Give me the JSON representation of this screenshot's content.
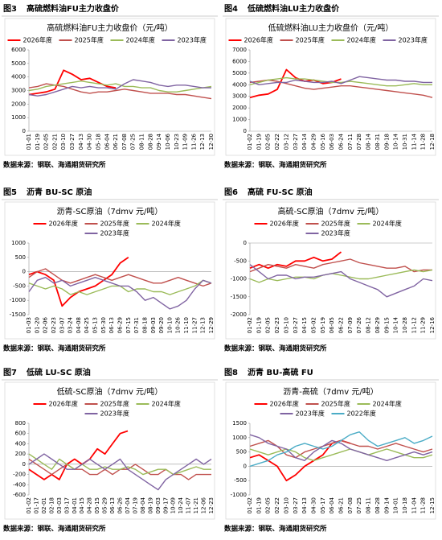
{
  "chart_data": [
    {
      "type": "line",
      "figure_label": "图3",
      "heading": "高硫燃料油FU主力收盘价",
      "title": "高硫燃料油FU主力收盘价（元/吨）",
      "source": "数据来源：钢联、海通期货研究所",
      "categories": [
        "01-01",
        "01-19",
        "02-05",
        "02-21",
        "03-10",
        "03-27",
        "04-13",
        "04-30",
        "05-18",
        "06-04",
        "06-21",
        "07-08",
        "07-25",
        "08-11",
        "08-28",
        "09-14",
        "10-06",
        "10-23",
        "11-09",
        "11-26",
        "12-13",
        "12-30"
      ],
      "ylim": [
        0,
        6000
      ],
      "yticks": [
        0,
        1000,
        2000,
        3000,
        4000,
        5000,
        6000
      ],
      "series": [
        {
          "name": "2026年度",
          "color": "#ff0000",
          "values": [
            2700,
            2800,
            2900,
            3100,
            4500,
            4200,
            3800,
            3900,
            3600,
            3300,
            3200,
            null,
            null,
            null,
            null,
            null,
            null,
            null,
            null,
            null,
            null,
            null
          ]
        },
        {
          "name": "2025年度",
          "color": "#c0504d",
          "values": [
            3200,
            3300,
            3500,
            3400,
            3300,
            3100,
            2900,
            2800,
            2900,
            2900,
            3000,
            3100,
            3000,
            2900,
            2800,
            2800,
            2800,
            2700,
            2700,
            2600,
            2500,
            2400
          ]
        },
        {
          "name": "2024年度",
          "color": "#9bbb59",
          "values": [
            3000,
            3100,
            3300,
            3400,
            3500,
            3600,
            3700,
            3600,
            3500,
            3400,
            3500,
            3300,
            3300,
            3200,
            3200,
            3000,
            2900,
            2900,
            3000,
            3100,
            3200,
            3300
          ]
        },
        {
          "name": "2023年度",
          "color": "#8064a2",
          "values": [
            2700,
            2600,
            2700,
            2900,
            3100,
            3300,
            3200,
            3300,
            3200,
            3200,
            3100,
            3500,
            3800,
            3700,
            3600,
            3400,
            3300,
            3400,
            3400,
            3300,
            3200,
            3200
          ]
        }
      ]
    },
    {
      "type": "line",
      "figure_label": "图4",
      "heading": "低硫燃料油LU主力收盘价",
      "title": "低硫燃料油LU主力收盘价（元/吨）",
      "source": "数据来源：钢联、海通期货研究所",
      "categories": [
        "01-02",
        "01-19",
        "02-05",
        "02-22",
        "03-12",
        "03-27",
        "04-14",
        "04-29",
        "05-16",
        "06-03",
        "06-24",
        "07-11",
        "07-28",
        "08-14",
        "08-31",
        "09-18",
        "10-14",
        "10-31",
        "11-14",
        "11-28",
        "12-18"
      ],
      "ylim": [
        0,
        7000
      ],
      "yticks": [
        0,
        1000,
        2000,
        3000,
        4000,
        5000,
        6000,
        7000
      ],
      "series": [
        {
          "name": "2026年度",
          "color": "#ff0000",
          "values": [
            2900,
            3100,
            3200,
            3600,
            5300,
            4600,
            4300,
            4400,
            4100,
            4200,
            4500,
            null,
            null,
            null,
            null,
            null,
            null,
            null,
            null,
            null,
            null
          ]
        },
        {
          "name": "2025年度",
          "color": "#c0504d",
          "values": [
            4200,
            4300,
            4400,
            4300,
            4100,
            3900,
            3700,
            3600,
            3700,
            3800,
            3900,
            3900,
            3800,
            3700,
            3600,
            3500,
            3400,
            3300,
            3200,
            3100,
            2900
          ]
        },
        {
          "name": "2024年度",
          "color": "#9bbb59",
          "values": [
            4000,
            4200,
            4400,
            4500,
            4600,
            4500,
            4500,
            4400,
            4300,
            4200,
            4200,
            4300,
            4200,
            4100,
            4000,
            3900,
            3900,
            4000,
            4100,
            4000,
            4000
          ]
        },
        {
          "name": "2023年度",
          "color": "#8064a2",
          "values": [
            4300,
            4000,
            4100,
            4200,
            4200,
            4400,
            4300,
            4200,
            4200,
            4300,
            4100,
            4400,
            4700,
            4600,
            4500,
            4400,
            4400,
            4300,
            4300,
            4200,
            4200
          ]
        }
      ]
    },
    {
      "type": "line",
      "figure_label": "图5",
      "heading": "沥青 BU-SC 原油",
      "title": "沥青-SC原油（7dmv 元/吨）",
      "source": "数据来源：钢联、海通期货研究所",
      "categories": [
        "01-03",
        "01-20",
        "02-06",
        "02-23",
        "03-07",
        "03-24",
        "04-08",
        "04-25",
        "05-13",
        "05-30",
        "06-13",
        "06-29",
        "07-15",
        "07-31",
        "08-18",
        "09-03",
        "09-20",
        "10-10",
        "10-26",
        "11-10",
        "11-27",
        "12-13",
        "12-29"
      ],
      "ylim": [
        -1500,
        1000
      ],
      "yticks": [
        -1500,
        -1000,
        -500,
        0,
        500,
        1000
      ],
      "series": [
        {
          "name": "2026年度",
          "color": "#ff0000",
          "values": [
            -100,
            0,
            -100,
            -300,
            -1200,
            -900,
            -700,
            -600,
            -500,
            -300,
            -100,
            300,
            500,
            null,
            null,
            null,
            null,
            null,
            null,
            null,
            null,
            null,
            null
          ]
        },
        {
          "name": "2025年度",
          "color": "#c0504d",
          "values": [
            -200,
            0,
            100,
            -100,
            -300,
            -400,
            -300,
            -200,
            -100,
            -200,
            -300,
            -200,
            -100,
            -200,
            -300,
            -400,
            -400,
            -300,
            -200,
            -300,
            -400,
            -500,
            -400
          ]
        },
        {
          "name": "2024年度",
          "color": "#9bbb59",
          "values": [
            -400,
            -500,
            -600,
            -500,
            -600,
            -800,
            -700,
            -800,
            -700,
            -600,
            -500,
            -500,
            -700,
            -600,
            -600,
            -700,
            -700,
            -800,
            -700,
            -600,
            -500,
            -300,
            -400
          ]
        },
        {
          "name": "2023年度",
          "color": "#8064a2",
          "values": [
            -700,
            -300,
            -200,
            -400,
            -300,
            -500,
            -400,
            -300,
            -200,
            -300,
            -400,
            -500,
            -500,
            -700,
            -1000,
            -900,
            -1100,
            -1300,
            -1200,
            -1000,
            -600,
            -300,
            -400
          ]
        }
      ]
    },
    {
      "type": "line",
      "figure_label": "图6",
      "heading": "高硫 FU-SC 原油",
      "title": "高硫-SC原油（7dmv 元/吨）",
      "source": "数据来源：钢联、海通期货研究所",
      "categories": [
        "01-02",
        "01-19",
        "02-05",
        "02-23",
        "03-10",
        "03-27",
        "04-15",
        "05-02",
        "05-19",
        "06-05",
        "06-22",
        "07-09",
        "07-26",
        "08-12",
        "08-29",
        "09-15",
        "10-14",
        "10-28",
        "11-12",
        "11-29",
        "12-16"
      ],
      "ylim": [
        -2000,
        0
      ],
      "yticks": [
        -2000,
        -1500,
        -1000,
        -500,
        0
      ],
      "series": [
        {
          "name": "2026年度",
          "color": "#ff0000",
          "values": [
            -700,
            -600,
            -700,
            -600,
            -650,
            -500,
            -500,
            -400,
            -500,
            -450,
            -250,
            null,
            null,
            null,
            null,
            null,
            null,
            null,
            null,
            null,
            null
          ]
        },
        {
          "name": "2025年度",
          "color": "#c0504d",
          "values": [
            -800,
            -700,
            -600,
            -650,
            -700,
            -600,
            -650,
            -700,
            -600,
            -550,
            -500,
            -450,
            -550,
            -600,
            -650,
            -700,
            -700,
            -650,
            -800,
            -750,
            -750
          ]
        },
        {
          "name": "2024年度",
          "color": "#9bbb59",
          "values": [
            -1000,
            -1100,
            -1000,
            -1050,
            -1000,
            -950,
            -950,
            -1000,
            -900,
            -850,
            -900,
            -950,
            -1000,
            -1000,
            -950,
            -900,
            -850,
            -800,
            -750,
            -800,
            -750
          ]
        },
        {
          "name": "2023年度",
          "color": "#8064a2",
          "values": [
            -600,
            -800,
            -1000,
            -900,
            -900,
            -1000,
            -950,
            -950,
            -900,
            -850,
            -800,
            -1000,
            -1100,
            -1200,
            -1300,
            -1500,
            -1400,
            -1300,
            -1200,
            -1000,
            -1050
          ]
        }
      ]
    },
    {
      "type": "line",
      "figure_label": "图7",
      "heading": "低硫 LU-SC 原油",
      "title": "低硫-SC原油（7dmv 元/吨）",
      "source": "数据来源：钢联、海通期货研究所",
      "categories": [
        "01-02",
        "01-17",
        "02-01",
        "02-18",
        "03-03",
        "03-17",
        "04-01",
        "04-15",
        "04-28",
        "05-15",
        "05-29",
        "06-13",
        "06-26",
        "07-04",
        "07-19",
        "08-04",
        "08-19",
        "09-03",
        "09-17",
        "10-09",
        "10-24",
        "11-07",
        "11-21",
        "12-06",
        "12-23"
      ],
      "ylim": [
        -600,
        800
      ],
      "yticks": [
        -600,
        -400,
        -200,
        0,
        200,
        400,
        600,
        800
      ],
      "series": [
        {
          "name": "2026年度",
          "color": "#ff0000",
          "values": [
            -100,
            -200,
            -300,
            -200,
            -300,
            0,
            100,
            0,
            100,
            300,
            200,
            400,
            600,
            650,
            null,
            null,
            null,
            null,
            null,
            null,
            null,
            null,
            null,
            null,
            null
          ]
        },
        {
          "name": "2025年度",
          "color": "#c0504d",
          "values": [
            100,
            0,
            -100,
            -200,
            -100,
            0,
            -100,
            -100,
            -200,
            -200,
            -100,
            -200,
            -100,
            -100,
            0,
            -100,
            -200,
            -200,
            -100,
            -200,
            -200,
            -300,
            -200,
            -200,
            -200
          ]
        },
        {
          "name": "2024年度",
          "color": "#9bbb59",
          "values": [
            200,
            100,
            0,
            -100,
            100,
            0,
            -100,
            0,
            -100,
            -100,
            -50,
            -100,
            -100,
            -50,
            -100,
            -200,
            -150,
            -100,
            -100,
            -200,
            -150,
            -100,
            -50,
            -100,
            -100
          ]
        },
        {
          "name": "2023年度",
          "color": "#8064a2",
          "values": [
            0,
            100,
            200,
            100,
            0,
            -100,
            -100,
            0,
            100,
            0,
            -100,
            0,
            100,
            -100,
            -200,
            -300,
            -400,
            -500,
            -300,
            -200,
            -100,
            0,
            100,
            0,
            100
          ]
        }
      ]
    },
    {
      "type": "line",
      "figure_label": "图8",
      "heading": "沥青 BU-高硫 FU",
      "title": "沥青-高硫（7dmv 元/吨）",
      "source": "数据来源：钢联、海通期货研究所",
      "categories": [
        "01-02",
        "01-19",
        "02-05",
        "02-22",
        "03-10",
        "03-27",
        "04-13",
        "04-30",
        "05-17",
        "06-04",
        "06-21",
        "07-08",
        "07-25",
        "08-11",
        "08-28",
        "09-14",
        "10-01",
        "10-18",
        "11-04",
        "11-28",
        "12-15"
      ],
      "ylim": [
        -1000,
        1500
      ],
      "yticks": [
        -1000,
        -500,
        0,
        500,
        1000,
        1500
      ],
      "series": [
        {
          "name": "2026年度",
          "color": "#ff0000",
          "values": [
            300,
            400,
            200,
            0,
            -500,
            -300,
            0,
            200,
            400,
            800,
            900,
            800,
            null,
            null,
            null,
            null,
            null,
            null,
            null,
            null,
            null
          ]
        },
        {
          "name": "2025年度",
          "color": "#c0504d",
          "values": [
            700,
            800,
            900,
            700,
            400,
            300,
            500,
            600,
            700,
            800,
            900,
            800,
            700,
            700,
            600,
            700,
            800,
            700,
            600,
            500,
            600
          ]
        },
        {
          "name": "2024年度",
          "color": "#9bbb59",
          "values": [
            600,
            500,
            400,
            500,
            600,
            500,
            300,
            200,
            300,
            400,
            500,
            600,
            500,
            400,
            500,
            600,
            500,
            400,
            300,
            300,
            400
          ]
        },
        {
          "name": "2023年度",
          "color": "#8064a2",
          "values": [
            1100,
            1000,
            800,
            700,
            600,
            300,
            200,
            500,
            700,
            900,
            800,
            600,
            500,
            400,
            300,
            200,
            300,
            400,
            500,
            400,
            500
          ]
        },
        {
          "name": "2022年度",
          "color": "#4bacc6",
          "values": [
            0,
            100,
            200,
            400,
            500,
            700,
            800,
            700,
            600,
            700,
            900,
            1100,
            1200,
            900,
            700,
            800,
            900,
            1000,
            800,
            900,
            1050
          ]
        }
      ]
    }
  ]
}
